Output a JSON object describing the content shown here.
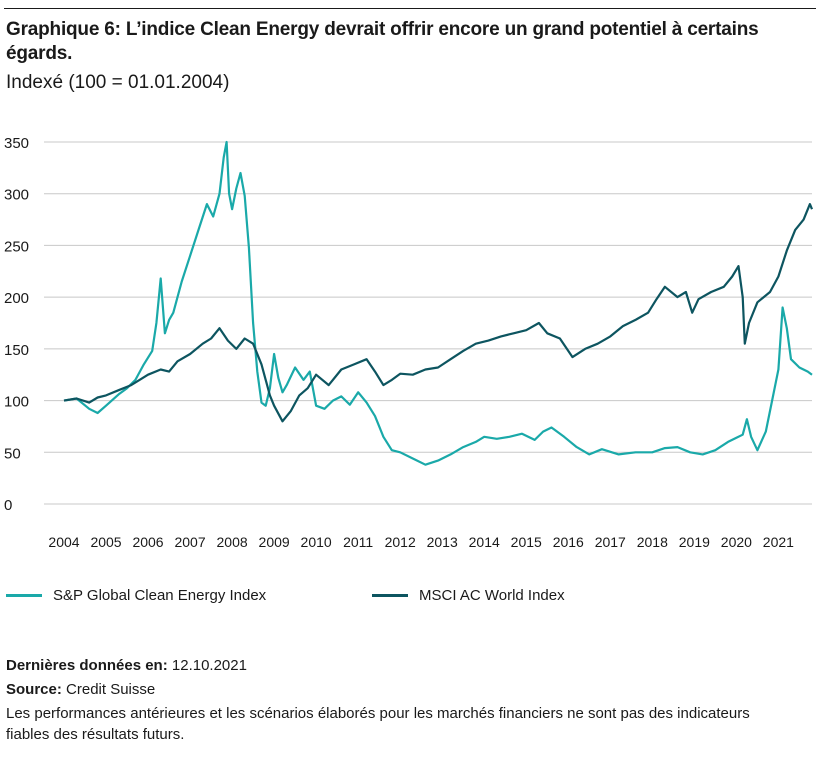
{
  "title": "Graphique 6: L’indice Clean Energy devrait offrir encore un grand potentiel à certains égards.",
  "subtitle": "Indexé (100 = 01.01.2004)",
  "footer": {
    "last_data_label": "Dernières données en:",
    "last_data_value": "12.10.2021",
    "source_label": "Source:",
    "source_value": "Credit Suisse",
    "disclaimer": "Les performances antérieures et les scénarios élaborés pour les marchés financiers ne sont pas des indicateurs fiables des résultats futurs."
  },
  "chart_data": {
    "type": "line",
    "title": "Graphique 6: L’indice Clean Energy devrait offrir encore un grand potentiel à certains égards.",
    "subtitle": "Indexé (100 = 01.01.2004)",
    "xlabel": "",
    "ylabel": "",
    "ylim": [
      0,
      350
    ],
    "yticks": [
      0,
      50,
      100,
      150,
      200,
      250,
      300,
      350
    ],
    "xlim": [
      2004,
      2021.8
    ],
    "xticks": [
      "2004",
      "2005",
      "2006",
      "2007",
      "2008",
      "2009",
      "2010",
      "2011",
      "2012",
      "2013",
      "2014",
      "2015",
      "2016",
      "2017",
      "2018",
      "2019",
      "2020",
      "2021"
    ],
    "grid": "horizontal",
    "legend_position": "bottom",
    "x_units": "year",
    "series": [
      {
        "name": "S&P Global Clean Energy Index",
        "color": "#1aa9a9",
        "x": [
          2004,
          2004.3,
          2004.6,
          2004.8,
          2005,
          2005.3,
          2005.5,
          2005.7,
          2005.9,
          2006.1,
          2006.2,
          2006.3,
          2006.4,
          2006.5,
          2006.6,
          2006.8,
          2007,
          2007.2,
          2007.4,
          2007.55,
          2007.7,
          2007.8,
          2007.87,
          2007.93,
          2008,
          2008.1,
          2008.2,
          2008.3,
          2008.4,
          2008.5,
          2008.6,
          2008.7,
          2008.8,
          2008.9,
          2009.0,
          2009.1,
          2009.2,
          2009.3,
          2009.5,
          2009.7,
          2009.85,
          2010,
          2010.2,
          2010.4,
          2010.6,
          2010.8,
          2011,
          2011.2,
          2011.4,
          2011.6,
          2011.8,
          2012,
          2012.3,
          2012.6,
          2012.9,
          2013.2,
          2013.5,
          2013.8,
          2014,
          2014.3,
          2014.6,
          2014.9,
          2015.2,
          2015.4,
          2015.6,
          2015.9,
          2016.2,
          2016.5,
          2016.8,
          2017.2,
          2017.6,
          2018,
          2018.3,
          2018.6,
          2018.9,
          2019.2,
          2019.5,
          2019.8,
          2020,
          2020.15,
          2020.25,
          2020.35,
          2020.5,
          2020.7,
          2020.85,
          2021,
          2021.05,
          2021.1,
          2021.2,
          2021.3,
          2021.5,
          2021.7,
          2021.8
        ],
        "values": [
          100,
          102,
          92,
          88,
          95,
          106,
          112,
          120,
          135,
          148,
          175,
          218,
          165,
          178,
          185,
          215,
          240,
          265,
          290,
          278,
          300,
          335,
          350,
          300,
          285,
          305,
          320,
          298,
          248,
          175,
          128,
          98,
          95,
          112,
          145,
          122,
          108,
          115,
          132,
          120,
          128,
          95,
          92,
          100,
          104,
          96,
          108,
          98,
          85,
          65,
          52,
          50,
          44,
          38,
          42,
          48,
          55,
          60,
          65,
          63,
          65,
          68,
          62,
          70,
          74,
          65,
          55,
          48,
          53,
          48,
          50,
          50,
          54,
          55,
          50,
          48,
          52,
          60,
          64,
          67,
          82,
          65,
          52,
          70,
          100,
          130,
          160,
          190,
          170,
          140,
          132,
          128,
          125
        ]
      },
      {
        "name": "MSCI AC World Index",
        "color": "#0d5560",
        "x": [
          2004,
          2004.3,
          2004.6,
          2004.8,
          2005,
          2005.3,
          2005.6,
          2006,
          2006.3,
          2006.5,
          2006.7,
          2007,
          2007.3,
          2007.5,
          2007.7,
          2007.9,
          2008.1,
          2008.3,
          2008.5,
          2008.7,
          2008.8,
          2008.9,
          2009,
          2009.2,
          2009.4,
          2009.6,
          2009.8,
          2010,
          2010.3,
          2010.6,
          2010.9,
          2011.2,
          2011.4,
          2011.6,
          2011.8,
          2012,
          2012.3,
          2012.6,
          2012.9,
          2013.2,
          2013.5,
          2013.8,
          2014.1,
          2014.4,
          2014.7,
          2015,
          2015.3,
          2015.5,
          2015.8,
          2016.1,
          2016.4,
          2016.7,
          2017,
          2017.3,
          2017.6,
          2017.9,
          2018.1,
          2018.3,
          2018.6,
          2018.8,
          2018.95,
          2019.1,
          2019.4,
          2019.7,
          2019.9,
          2020.05,
          2020.15,
          2020.2,
          2020.3,
          2020.5,
          2020.8,
          2021,
          2021.2,
          2021.4,
          2021.6,
          2021.75,
          2021.8
        ],
        "values": [
          100,
          102,
          98,
          103,
          105,
          110,
          115,
          125,
          130,
          128,
          138,
          145,
          155,
          160,
          170,
          158,
          150,
          160,
          155,
          135,
          120,
          105,
          95,
          80,
          90,
          105,
          112,
          125,
          115,
          130,
          135,
          140,
          128,
          115,
          120,
          126,
          125,
          130,
          132,
          140,
          148,
          155,
          158,
          162,
          165,
          168,
          175,
          165,
          160,
          142,
          150,
          155,
          162,
          172,
          178,
          185,
          198,
          210,
          200,
          205,
          185,
          198,
          205,
          210,
          220,
          230,
          200,
          155,
          175,
          195,
          205,
          220,
          245,
          265,
          275,
          290,
          285
        ]
      }
    ]
  },
  "legend": {
    "items": [
      {
        "label": "S&P Global Clean Energy Index",
        "color": "#1aa9a9"
      },
      {
        "label": "MSCI AC World Index",
        "color": "#0d5560"
      }
    ]
  }
}
